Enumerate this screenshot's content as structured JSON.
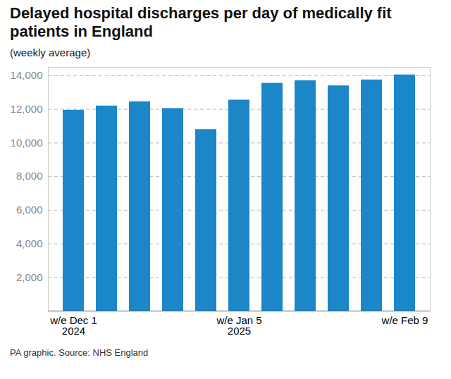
{
  "chart_data": {
    "type": "bar",
    "title": "Delayed hospital discharges per day of medically fit patients in England",
    "subtitle": "(weekly average)",
    "caption": "PA graphic. Source: NHS England",
    "categories": [
      "w/e Dec 1\n2024",
      null,
      null,
      null,
      null,
      "w/e Jan 5\n2025",
      null,
      null,
      null,
      null,
      "w/e Feb 9"
    ],
    "values": [
      11950,
      12200,
      12450,
      12050,
      10800,
      12550,
      13550,
      13700,
      13400,
      13750,
      14050
    ],
    "color": "#1b87c8",
    "ylim": [
      0,
      14500
    ],
    "yticks": [
      {
        "value": 2000,
        "label": "2,000"
      },
      {
        "value": 4000,
        "label": "4,000"
      },
      {
        "value": 6000,
        "label": "6,000"
      },
      {
        "value": 8000,
        "label": "8,000"
      },
      {
        "value": 10000,
        "label": "10,000"
      },
      {
        "value": 12000,
        "label": "12,000"
      },
      {
        "value": 14000,
        "label": "14,000"
      }
    ],
    "grid": true
  }
}
